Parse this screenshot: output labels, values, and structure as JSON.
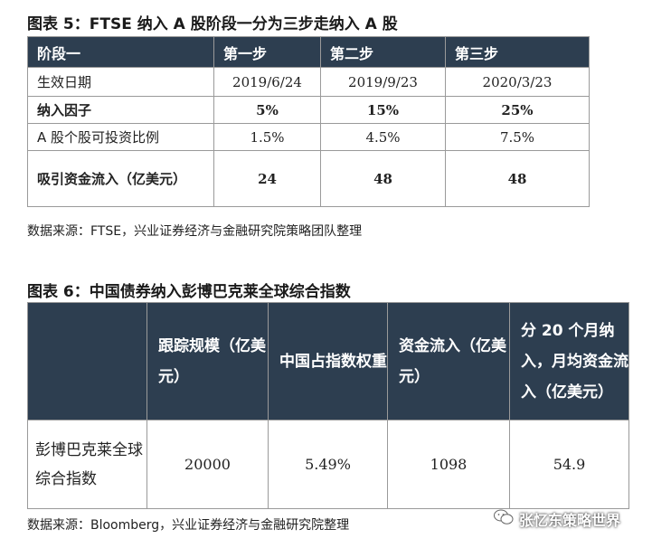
{
  "table1": {
    "title": "图表 5：FTSE 纳入 A 股阶段一分为三步走纳入 A 股",
    "headers": [
      "阶段一",
      "第一步",
      "第二步",
      "第三步"
    ],
    "rows": [
      {
        "label": "生效日期",
        "values": [
          "2019/6/24",
          "2019/9/23",
          "2020/3/23"
        ]
      },
      {
        "label": "纳入因子",
        "values": [
          "5%",
          "15%",
          "25%"
        ]
      },
      {
        "label": "A 股个股可投资比例",
        "values": [
          "1.5%",
          "4.5%",
          "7.5%"
        ]
      },
      {
        "label": "吸引资金流入（亿美元）",
        "values": [
          "24",
          "48",
          "48"
        ]
      }
    ],
    "source": "数据来源：FTSE，兴业证券经济与金融研究院策略团队整理"
  },
  "table2": {
    "title": "图表 6：中国债券纳入彭博巴克莱全球综合指数",
    "headers": [
      "",
      "跟踪规模（亿美元）",
      "中国占指数权重",
      "资金流入（亿美元）",
      "分 20 个月纳入，月均资金流入（亿美元）"
    ],
    "row": {
      "label": "彭博巴克莱全球综合指数",
      "values": [
        "20000",
        "5.49%",
        "1098",
        "54.9"
      ]
    },
    "source": "数据来源：Bloomberg，兴业证券经济与金融研究院整理"
  },
  "watermark": {
    "text": "张忆东策略世界",
    "icon": "wechat-icon"
  }
}
